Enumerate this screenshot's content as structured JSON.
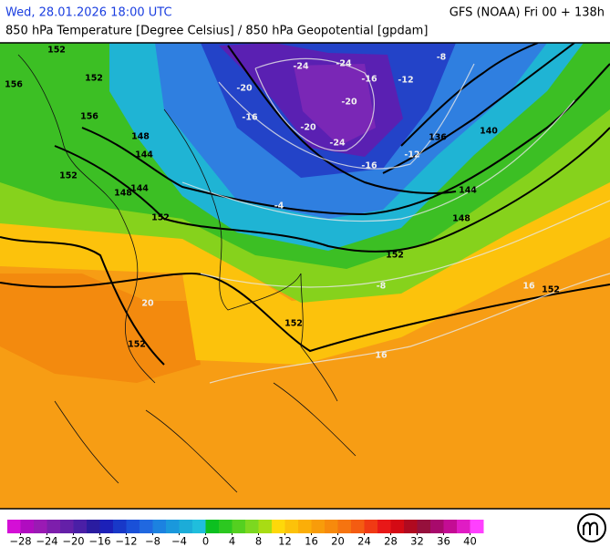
{
  "header": {
    "valid_time": "Wed, 28.01.2026 18:00 UTC",
    "model_run": "GFS (NOAA) Fri 00 + 138h",
    "subtitle": "850 hPa Temperature [Degree Celsius] / 850 hPa Geopotential [gpdam]"
  },
  "contour_labels": [
    {
      "text": "152",
      "kind": "geopotential"
    },
    {
      "text": "152",
      "kind": "geopotential"
    },
    {
      "text": "156",
      "kind": "geopotential"
    },
    {
      "text": "156",
      "kind": "geopotential"
    },
    {
      "text": "148",
      "kind": "geopotential"
    },
    {
      "text": "144",
      "kind": "geopotential"
    },
    {
      "text": "152",
      "kind": "geopotential"
    },
    {
      "text": "148",
      "kind": "geopotential"
    },
    {
      "text": "144",
      "kind": "geopotential"
    },
    {
      "text": "152",
      "kind": "geopotential"
    },
    {
      "text": "136",
      "kind": "geopotential"
    },
    {
      "text": "140",
      "kind": "geopotential"
    },
    {
      "text": "144",
      "kind": "geopotential"
    },
    {
      "text": "148",
      "kind": "geopotential"
    },
    {
      "text": "152",
      "kind": "geopotential"
    },
    {
      "text": "152",
      "kind": "geopotential"
    },
    {
      "text": "152",
      "kind": "geopotential"
    },
    {
      "text": "152",
      "kind": "geopotential"
    },
    {
      "text": "-24",
      "kind": "temperature"
    },
    {
      "text": "-24",
      "kind": "temperature"
    },
    {
      "text": "-20",
      "kind": "temperature"
    },
    {
      "text": "-20",
      "kind": "temperature"
    },
    {
      "text": "-16",
      "kind": "temperature"
    },
    {
      "text": "-16",
      "kind": "temperature"
    },
    {
      "text": "-12",
      "kind": "temperature"
    },
    {
      "text": "-20",
      "kind": "temperature"
    },
    {
      "text": "-24",
      "kind": "temperature"
    },
    {
      "text": "-16",
      "kind": "temperature"
    },
    {
      "text": "-12",
      "kind": "temperature"
    },
    {
      "text": "-8",
      "kind": "temperature"
    },
    {
      "text": "-4",
      "kind": "temperature"
    },
    {
      "text": "-8",
      "kind": "temperature"
    },
    {
      "text": "16",
      "kind": "temperature"
    },
    {
      "text": "16",
      "kind": "temperature"
    },
    {
      "text": "20",
      "kind": "temperature"
    }
  ],
  "colorbar": {
    "range": [
      -30,
      42
    ],
    "colors": [
      "#d40fd6",
      "#b00cc0",
      "#9a1ab4",
      "#7d1eac",
      "#6420a8",
      "#4a1fa6",
      "#2a1ca0",
      "#1c20b8",
      "#1838c8",
      "#1a50d8",
      "#2068e0",
      "#1c82e0",
      "#1a98dc",
      "#1cacd8",
      "#20bedc",
      "#0cc020",
      "#2cc820",
      "#54d020",
      "#7cd820",
      "#a8dc14",
      "#fed80a",
      "#fcc20a",
      "#fbae08",
      "#f89c0a",
      "#f78a0c",
      "#f67410",
      "#f45c12",
      "#f03a14",
      "#e81818",
      "#d40a14",
      "#b00a20",
      "#96103c",
      "#a80a6c",
      "#c40c94",
      "#e01cc4",
      "#ff40ff"
    ],
    "ticks": [
      {
        "value": -28,
        "label": "−28"
      },
      {
        "value": -24,
        "label": "−24"
      },
      {
        "value": -20,
        "label": "−20"
      },
      {
        "value": -16,
        "label": "−16"
      },
      {
        "value": -12,
        "label": "−12"
      },
      {
        "value": -8,
        "label": "−8"
      },
      {
        "value": -4,
        "label": "−4"
      },
      0,
      4,
      8,
      12,
      16,
      20,
      24,
      28,
      32,
      36,
      40
    ]
  }
}
